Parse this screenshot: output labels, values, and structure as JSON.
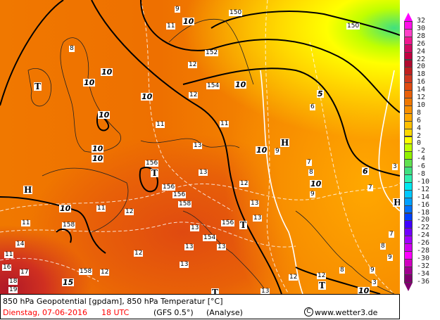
{
  "map": {
    "geopotential_labels": [
      "10",
      "10",
      "10",
      "10",
      "10",
      "10",
      "10",
      "10",
      "10",
      "10",
      "10",
      "15",
      "5",
      "6",
      "10"
    ],
    "height_labels": [
      "150",
      "150",
      "152",
      "154",
      "156",
      "156",
      "156",
      "158",
      "158",
      "158",
      "156",
      "154"
    ],
    "temp_labels": [
      "9",
      "11",
      "8",
      "12",
      "12",
      "11",
      "11",
      "13",
      "11",
      "12",
      "13",
      "12",
      "13",
      "13",
      "13",
      "13",
      "12",
      "11",
      "11",
      "12",
      "13",
      "14",
      "16",
      "17",
      "18",
      "19",
      "12",
      "13",
      "9",
      "9",
      "6",
      "7",
      "8",
      "9",
      "7",
      "3",
      "8",
      "7",
      "8",
      "3",
      "9",
      "12",
      "13"
    ],
    "pressure_centers": [
      "T",
      "T",
      "H",
      "H",
      "T",
      "H",
      "T",
      "T"
    ]
  },
  "legend": {
    "title_units": "°C",
    "ticks": [
      "32",
      "30",
      "28",
      "26",
      "24",
      "22",
      "20",
      "18",
      "16",
      "14",
      "12",
      "10",
      "8",
      "6",
      "4",
      "2",
      "0",
      "-2",
      "-4",
      "-6",
      "-8",
      "-10",
      "-12",
      "-14",
      "-16",
      "-18",
      "-20",
      "-22",
      "-24",
      "-26",
      "-28",
      "-30",
      "-32",
      "-34",
      "-36"
    ],
    "colors": [
      "#ff10e8",
      "#ff40c8",
      "#f01890",
      "#d00a60",
      "#c00040",
      "#b00a30",
      "#c02020",
      "#d03820",
      "#e04a10",
      "#e86008",
      "#f07800",
      "#f89000",
      "#ffa800",
      "#ffc000",
      "#ffd800",
      "#ffff00",
      "#c0ff00",
      "#90f000",
      "#60e050",
      "#40e080",
      "#30f0b0",
      "#00e8f0",
      "#00c8ff",
      "#00a0ff",
      "#0070ff",
      "#0040ff",
      "#4000ff",
      "#7000ff",
      "#a000ff",
      "#d000f0",
      "#ff00ff",
      "#d000c0",
      "#a00090",
      "#800070"
    ],
    "top_arrow_color": "#ff00ff",
    "bottom_arrow_color": "#800070"
  },
  "footer": {
    "title": "850 hPa Geopotential [gpdam], 850 hPa Temperatur [°C]",
    "date": "Dienstag, 07-06-2016",
    "time": "18 UTC",
    "model": "(GFS 0.5°)",
    "run_type": "(Analyse)",
    "copyright_symbol": "C",
    "site": "www.wetter3.de",
    "date_color": "#ff0000"
  }
}
